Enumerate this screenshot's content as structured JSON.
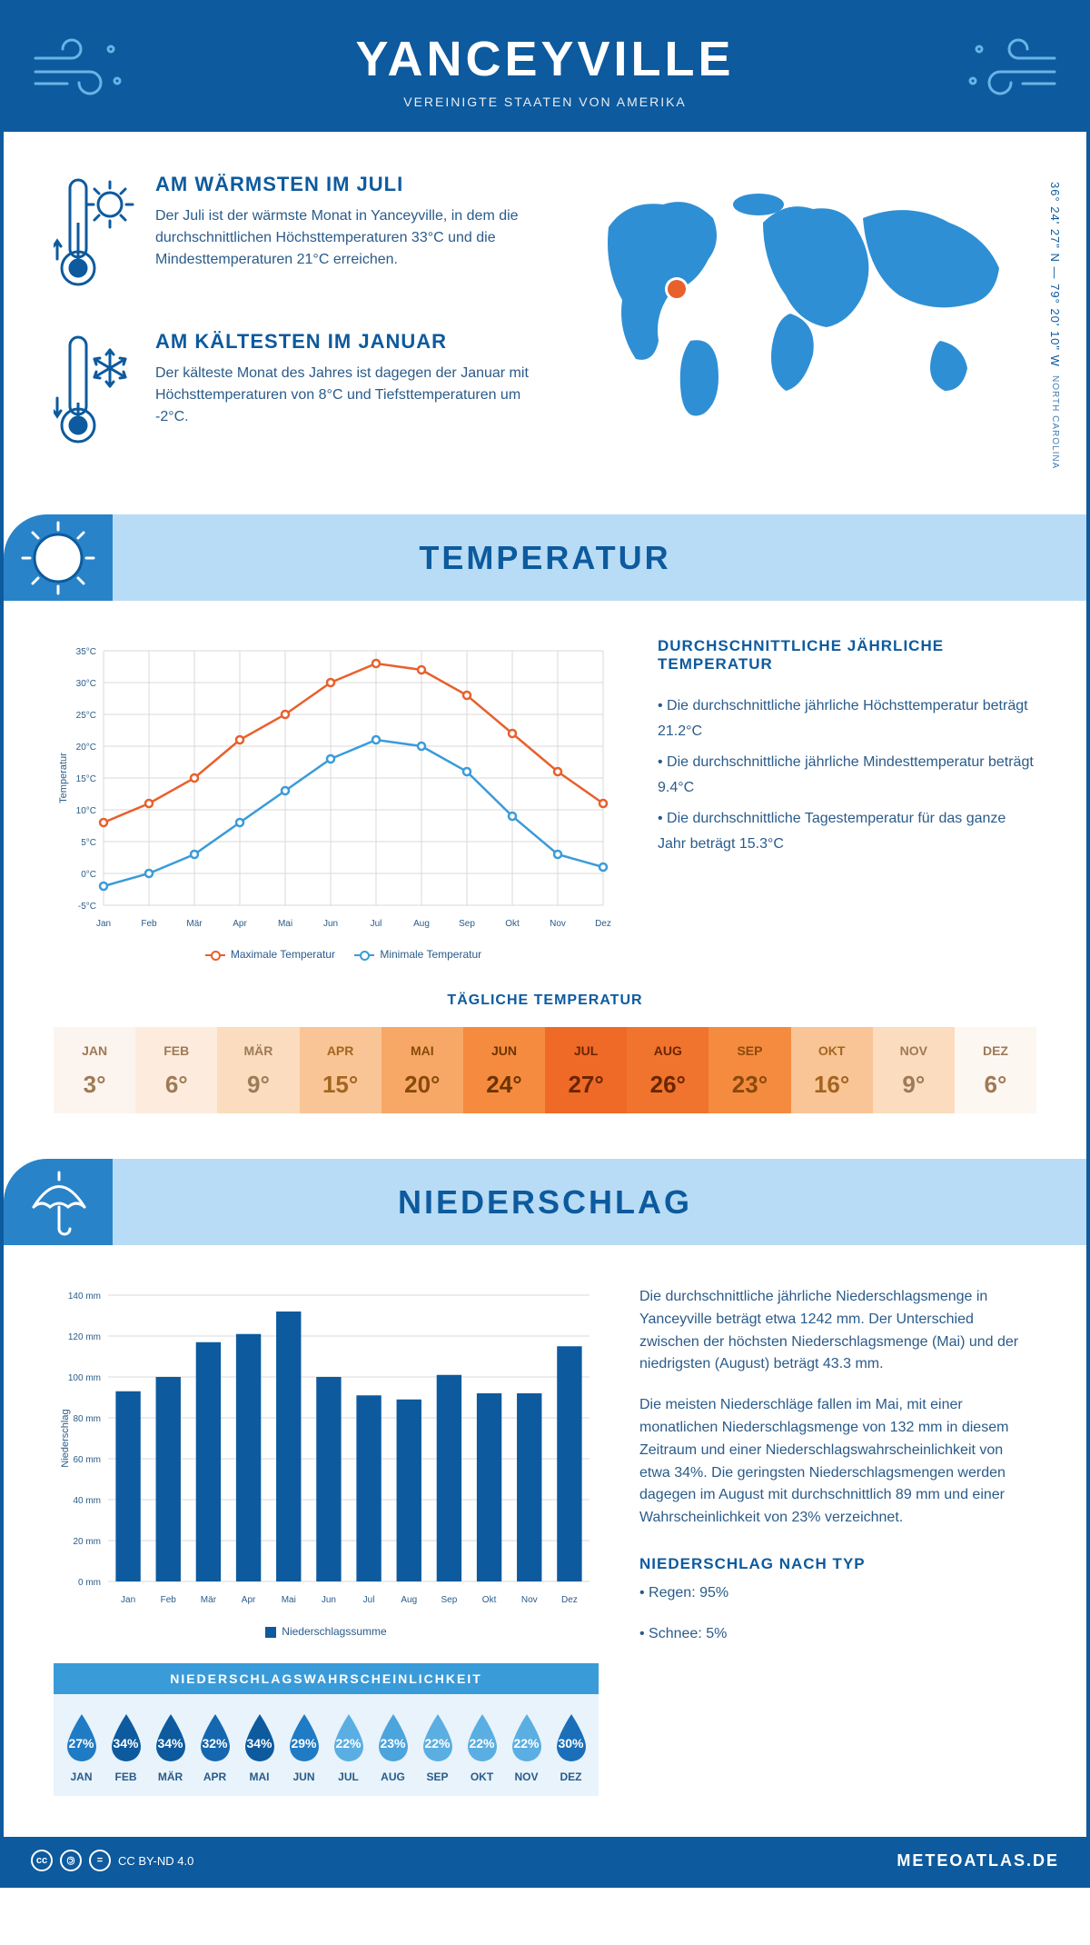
{
  "header": {
    "title": "YANCEYVILLE",
    "subtitle": "VEREINIGTE STAATEN VON AMERIKA"
  },
  "coords": {
    "text": "36° 24' 27\" N — 79° 20' 10\" W",
    "region": "NORTH CAROLINA"
  },
  "facts": {
    "warm": {
      "title": "AM WÄRMSTEN IM JULI",
      "body": "Der Juli ist der wärmste Monat in Yanceyville, in dem die durchschnittlichen Höchsttemperaturen 33°C und die Mindesttemperaturen 21°C erreichen."
    },
    "cold": {
      "title": "AM KÄLTESTEN IM JANUAR",
      "body": "Der kälteste Monat des Jahres ist dagegen der Januar mit Höchsttemperaturen von 8°C und Tiefsttemperaturen um -2°C."
    }
  },
  "temperature": {
    "section_title": "TEMPERATUR",
    "text_title": "DURCHSCHNITTLICHE JÄHRLICHE TEMPERATUR",
    "bullets": [
      "• Die durchschnittliche jährliche Höchsttemperatur beträgt 21.2°C",
      "• Die durchschnittliche jährliche Mindesttemperatur beträgt 9.4°C",
      "• Die durchschnittliche Tagestemperatur für das ganze Jahr beträgt 15.3°C"
    ],
    "chart": {
      "type": "line",
      "months": [
        "Jan",
        "Feb",
        "Mär",
        "Apr",
        "Mai",
        "Jun",
        "Jul",
        "Aug",
        "Sep",
        "Okt",
        "Nov",
        "Dez"
      ],
      "series": [
        {
          "name": "Maximale Temperatur",
          "color": "#e8602c",
          "values": [
            8,
            11,
            15,
            21,
            25,
            30,
            33,
            32,
            28,
            22,
            16,
            11
          ]
        },
        {
          "name": "Minimale Temperatur",
          "color": "#3a9bd9",
          "values": [
            -2,
            0,
            3,
            8,
            13,
            18,
            21,
            20,
            16,
            9,
            3,
            1
          ]
        }
      ],
      "ylim": [
        -5,
        35
      ],
      "ytick_step": 5,
      "ylabel": "Temperatur",
      "grid_color": "#d9d9d9",
      "axis_color": "#444",
      "background": "#ffffff"
    },
    "legend_max": "Maximale Temperatur",
    "legend_min": "Minimale Temperatur",
    "daily_title": "TÄGLICHE TEMPERATUR",
    "daily": {
      "months": [
        "JAN",
        "FEB",
        "MÄR",
        "APR",
        "MAI",
        "JUN",
        "JUL",
        "AUG",
        "SEP",
        "OKT",
        "NOV",
        "DEZ"
      ],
      "values": [
        "3°",
        "6°",
        "9°",
        "15°",
        "20°",
        "24°",
        "27°",
        "26°",
        "23°",
        "16°",
        "9°",
        "6°"
      ],
      "cell_bg": [
        "#fcf4ee",
        "#fdecdd",
        "#fbdcbe",
        "#f9c596",
        "#f7a866",
        "#f58b3f",
        "#ef6a26",
        "#f0742d",
        "#f58b3f",
        "#f9c596",
        "#fbdcbe",
        "#fdf7f2"
      ],
      "text_color": [
        "#9e7a56",
        "#9e7a56",
        "#9e7a56",
        "#a3661f",
        "#8a4a0b",
        "#6b3400",
        "#6b2500",
        "#6b2500",
        "#8a4a0b",
        "#a3661f",
        "#9e7a56",
        "#9e7a56"
      ]
    }
  },
  "precip": {
    "section_title": "NIEDERSCHLAG",
    "chart": {
      "type": "bar",
      "months": [
        "Jan",
        "Feb",
        "Mär",
        "Apr",
        "Mai",
        "Jun",
        "Jul",
        "Aug",
        "Sep",
        "Okt",
        "Nov",
        "Dez"
      ],
      "values": [
        93,
        100,
        117,
        121,
        132,
        100,
        91,
        89,
        101,
        92,
        92,
        115
      ],
      "bar_color": "#0d5a9e",
      "ylim": [
        0,
        140
      ],
      "ytick_step": 20,
      "ylabel": "Niederschlag",
      "unit": "mm",
      "grid_color": "#d9d9d9",
      "legend": "Niederschlagssumme"
    },
    "text1": "Die durchschnittliche jährliche Niederschlagsmenge in Yanceyville beträgt etwa 1242 mm. Der Unterschied zwischen der höchsten Niederschlagsmenge (Mai) und der niedrigsten (August) beträgt 43.3 mm.",
    "text2": "Die meisten Niederschläge fallen im Mai, mit einer monatlichen Niederschlagsmenge von 132 mm in diesem Zeitraum und einer Niederschlagswahrscheinlichkeit von etwa 34%. Die geringsten Niederschlagsmengen werden dagegen im August mit durchschnittlich 89 mm und einer Wahrscheinlichkeit von 23% verzeichnet.",
    "type_title": "NIEDERSCHLAG NACH TYP",
    "type_lines": [
      "• Regen: 95%",
      "• Schnee: 5%"
    ],
    "prob": {
      "title": "NIEDERSCHLAGSWAHRSCHEINLICHKEIT",
      "months": [
        "JAN",
        "FEB",
        "MÄR",
        "APR",
        "MAI",
        "JUN",
        "JUL",
        "AUG",
        "SEP",
        "OKT",
        "NOV",
        "DEZ"
      ],
      "pct": [
        "27%",
        "34%",
        "34%",
        "32%",
        "34%",
        "29%",
        "22%",
        "23%",
        "22%",
        "22%",
        "22%",
        "30%"
      ],
      "colors": [
        "#1f7bc4",
        "#0d5a9e",
        "#0d5a9e",
        "#1568b0",
        "#0d5a9e",
        "#1f7bc4",
        "#5aaee2",
        "#4ba4dc",
        "#5aaee2",
        "#5aaee2",
        "#5aaee2",
        "#1a6fb8"
      ]
    }
  },
  "footer": {
    "license": "CC BY-ND 4.0",
    "brand": "METEOATLAS.DE"
  }
}
